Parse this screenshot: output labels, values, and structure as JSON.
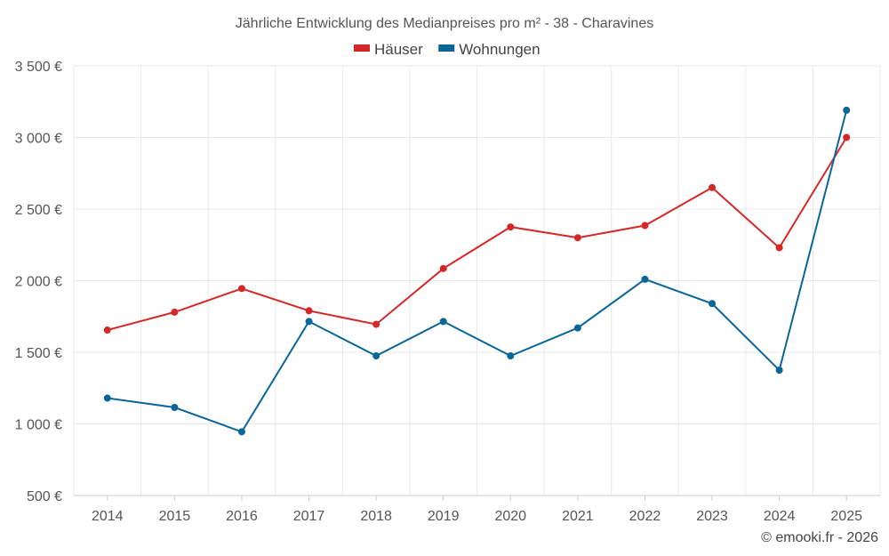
{
  "chart_data": {
    "type": "line",
    "title": "Jährliche Entwicklung des Medianpreises pro m² - 38 - Charavines",
    "categories": [
      "2014",
      "2015",
      "2016",
      "2017",
      "2018",
      "2019",
      "2020",
      "2021",
      "2022",
      "2023",
      "2024",
      "2025"
    ],
    "series": [
      {
        "name": "Häuser",
        "color": "#d62728",
        "values": [
          1655,
          1780,
          1945,
          1790,
          1695,
          2085,
          2375,
          2300,
          2385,
          2650,
          2230,
          3000
        ]
      },
      {
        "name": "Wohnungen",
        "color": "#0a6699",
        "values": [
          1180,
          1115,
          945,
          1715,
          1475,
          1715,
          1475,
          1670,
          2010,
          1840,
          1375,
          3190
        ]
      }
    ],
    "ylim": [
      500,
      3500
    ],
    "yticks": [
      500,
      1000,
      1500,
      2000,
      2500,
      3000,
      3500
    ],
    "ytick_labels": [
      "500 €",
      "1 000 €",
      "1 500 €",
      "2 000 €",
      "2 500 €",
      "3 000 €",
      "3 500 €"
    ],
    "legend_position": "top-center",
    "grid": true
  },
  "credit": "© emooki.fr - 2026"
}
